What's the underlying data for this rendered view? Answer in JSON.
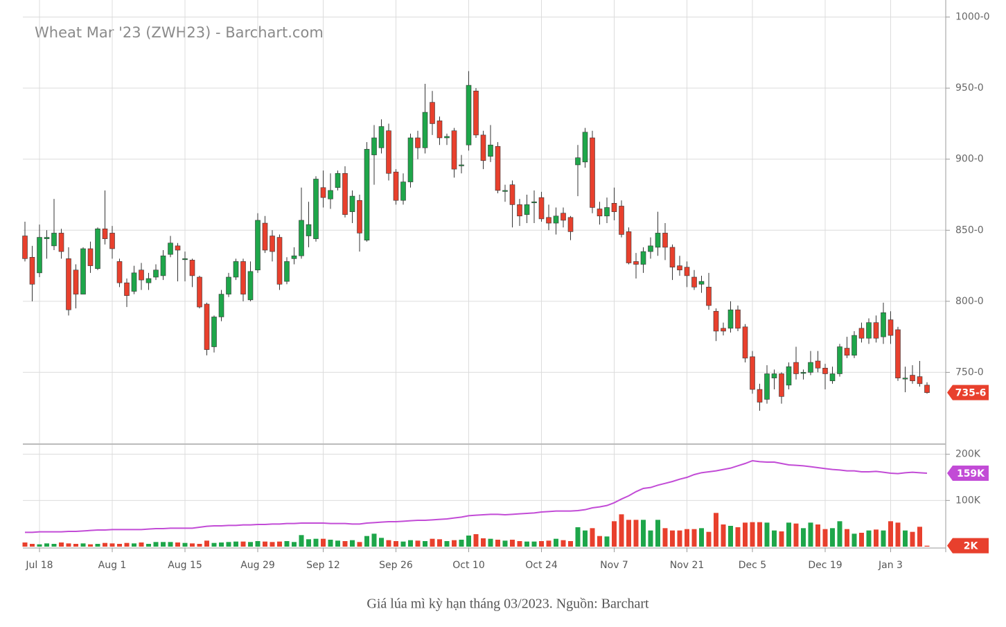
{
  "caption": "Giá lúa mì kỳ hạn tháng 03/2023. Nguồn: Barchart",
  "chart_data": [
    {
      "type": "candlestick",
      "title": "Wheat Mar '23 (ZWH23) - Barchart.com",
      "up_color": "#1ea64a",
      "down_color": "#e8402d",
      "grid": true,
      "ylim": [
        700,
        1012
      ],
      "yticks": [
        {
          "value": 750,
          "label": "750-0"
        },
        {
          "value": 800,
          "label": "800-0"
        },
        {
          "value": 850,
          "label": "850-0"
        },
        {
          "value": 900,
          "label": "900-0"
        },
        {
          "value": 950,
          "label": "950-0"
        },
        {
          "value": 1000,
          "label": "1000-0"
        }
      ],
      "last_label": {
        "value": 735.75,
        "label": "735-6"
      },
      "open": [
        846,
        831,
        820,
        844,
        839,
        848,
        830,
        822,
        805,
        837,
        823,
        851,
        848,
        828,
        813,
        807,
        822,
        813,
        817,
        818,
        833,
        839,
        830,
        829,
        817,
        798,
        768,
        789,
        805,
        817,
        828,
        801,
        822,
        855,
        846,
        845,
        814,
        830,
        832,
        846,
        844,
        880,
        872,
        880,
        890,
        863,
        871,
        843,
        903,
        908,
        920,
        891,
        871,
        884,
        915,
        908,
        940,
        927,
        915,
        920,
        896,
        910,
        948,
        917,
        902,
        909,
        878,
        882,
        868,
        861,
        870,
        873,
        859,
        855,
        862,
        859,
        896,
        898,
        915,
        865,
        860,
        869,
        867,
        849,
        828,
        826,
        835,
        838,
        848,
        838,
        825,
        824,
        817,
        812,
        810,
        793,
        781,
        781,
        794,
        782,
        761,
        738,
        731,
        746,
        749,
        741,
        757,
        750,
        750,
        758,
        753,
        744,
        749,
        767,
        762,
        781,
        774,
        785,
        775,
        787,
        780,
        746,
        748,
        747,
        741
      ],
      "high": [
        856,
        839,
        854,
        850,
        872,
        851,
        838,
        826,
        838,
        842,
        852,
        878,
        853,
        830,
        816,
        825,
        827,
        820,
        826,
        836,
        846,
        841,
        835,
        830,
        818,
        799,
        790,
        808,
        820,
        830,
        830,
        828,
        862,
        860,
        850,
        847,
        831,
        838,
        880,
        870,
        888,
        892,
        890,
        892,
        895,
        878,
        875,
        912,
        924,
        928,
        925,
        893,
        890,
        918,
        920,
        953,
        948,
        930,
        918,
        922,
        903,
        962,
        950,
        920,
        924,
        912,
        882,
        885,
        872,
        875,
        878,
        877,
        868,
        866,
        866,
        860,
        910,
        922,
        920,
        870,
        873,
        880,
        871,
        852,
        834,
        838,
        845,
        863,
        855,
        840,
        832,
        828,
        822,
        818,
        820,
        795,
        785,
        800,
        797,
        784,
        765,
        742,
        755,
        752,
        750,
        757,
        768,
        752,
        765,
        765,
        756,
        754,
        770,
        775,
        779,
        785,
        788,
        790,
        799,
        793,
        782,
        754,
        755,
        758,
        743
      ],
      "low": [
        828,
        800,
        817,
        830,
        836,
        830,
        790,
        795,
        805,
        820,
        822,
        840,
        830,
        810,
        796,
        805,
        808,
        808,
        815,
        815,
        831,
        814,
        814,
        810,
        795,
        762,
        764,
        786,
        803,
        815,
        800,
        800,
        820,
        834,
        828,
        808,
        812,
        826,
        830,
        838,
        842,
        866,
        865,
        878,
        859,
        855,
        835,
        842,
        882,
        904,
        885,
        868,
        868,
        880,
        900,
        904,
        917,
        910,
        910,
        887,
        890,
        906,
        915,
        893,
        898,
        876,
        870,
        852,
        853,
        855,
        855,
        856,
        850,
        847,
        852,
        843,
        874,
        894,
        862,
        854,
        855,
        857,
        845,
        826,
        816,
        820,
        830,
        832,
        829,
        815,
        818,
        810,
        808,
        806,
        794,
        772,
        776,
        778,
        779,
        757,
        735,
        723,
        728,
        738,
        728,
        738,
        745,
        745,
        748,
        750,
        738,
        742,
        747,
        760,
        760,
        771,
        770,
        771,
        770,
        770,
        744,
        736,
        742,
        740,
        735
      ],
      "close": [
        830,
        812,
        845,
        845,
        848,
        835,
        794,
        805,
        837,
        825,
        851,
        844,
        837,
        813,
        804,
        820,
        815,
        816,
        822,
        832,
        841,
        836,
        830,
        818,
        796,
        766,
        789,
        805,
        817,
        828,
        805,
        821,
        857,
        836,
        835,
        812,
        828,
        832,
        857,
        854,
        886,
        873,
        878,
        890,
        861,
        874,
        848,
        907,
        915,
        923,
        890,
        871,
        884,
        915,
        908,
        933,
        925,
        915,
        916,
        893,
        896,
        952,
        917,
        899,
        910,
        878,
        878,
        868,
        860,
        868,
        870,
        858,
        855,
        860,
        857,
        849,
        901,
        919,
        866,
        860,
        866,
        863,
        847,
        827,
        826,
        835,
        839,
        848,
        838,
        824,
        822,
        818,
        810,
        814,
        797,
        779,
        779,
        794,
        781,
        760,
        738,
        729,
        749,
        749,
        733,
        754,
        749,
        750,
        757,
        753,
        749,
        749,
        768,
        762,
        776,
        774,
        785,
        774,
        792,
        776,
        746,
        746,
        744,
        742,
        735.75
      ]
    },
    {
      "type": "bar",
      "categories": [
        null,
        null,
        "Jul 18",
        null,
        null,
        null,
        null,
        null,
        null,
        null,
        null,
        null,
        "Aug 1",
        null,
        null,
        null,
        null,
        null,
        null,
        null,
        null,
        null,
        "Aug 15",
        null,
        null,
        null,
        null,
        null,
        null,
        null,
        null,
        null,
        "Aug 29",
        null,
        null,
        null,
        null,
        null,
        null,
        null,
        null,
        "Sep 12",
        null,
        null,
        null,
        null,
        null,
        null,
        null,
        null,
        null,
        "Sep 26",
        null,
        null,
        null,
        null,
        null,
        null,
        null,
        null,
        null,
        "Oct 10",
        null,
        null,
        null,
        null,
        null,
        null,
        null,
        null,
        null,
        "Oct 24",
        null,
        null,
        null,
        null,
        null,
        null,
        null,
        null,
        null,
        "Nov 7",
        null,
        null,
        null,
        null,
        null,
        null,
        null,
        null,
        null,
        "Nov 21",
        null,
        null,
        null,
        null,
        null,
        null,
        null,
        null,
        "Dec 5",
        null,
        null,
        null,
        null,
        null,
        null,
        null,
        null,
        null,
        "Dec 19",
        null,
        null,
        null,
        null,
        null,
        null,
        null,
        null,
        "Jan 3",
        null,
        null,
        null,
        null,
        null
      ],
      "ylim": [
        0,
        216000
      ],
      "yticks": [
        {
          "value": 100000,
          "label": "100K"
        },
        {
          "value": 200000,
          "label": "200K"
        }
      ],
      "series": [
        {
          "type": "bar",
          "up_color": "#1ea64a",
          "down_color": "#e8402d",
          "last_label": {
            "value": 2000,
            "label": "2K"
          },
          "values": [
            9000,
            6000,
            5000,
            7000,
            6000,
            9000,
            7000,
            6000,
            7000,
            5000,
            6000,
            8000,
            7000,
            6000,
            8000,
            7000,
            9000,
            6000,
            10000,
            10000,
            10000,
            9000,
            8000,
            7000,
            6000,
            13000,
            8000,
            9000,
            10000,
            11000,
            11000,
            10000,
            12000,
            11000,
            10000,
            11000,
            12000,
            10000,
            25000,
            16000,
            17000,
            17000,
            15000,
            13000,
            12000,
            14000,
            10000,
            23000,
            28000,
            19000,
            14000,
            12000,
            11000,
            14000,
            13000,
            12000,
            17000,
            16000,
            12000,
            14000,
            15000,
            24000,
            27000,
            18000,
            17000,
            15000,
            13000,
            15000,
            12000,
            11000,
            11000,
            12000,
            13000,
            17000,
            14000,
            12000,
            42000,
            35000,
            40000,
            23000,
            22000,
            55000,
            70000,
            58000,
            58000,
            58000,
            35000,
            58000,
            40000,
            35000,
            35000,
            38000,
            38000,
            40000,
            32000,
            73000,
            48000,
            45000,
            42000,
            52000,
            53000,
            53000,
            52000,
            35000,
            33000,
            52000,
            50000,
            40000,
            52000,
            48000,
            38000,
            40000,
            55000,
            38000,
            28000,
            30000,
            35000,
            37000,
            35000,
            55000,
            52000,
            35000,
            32000,
            43000,
            2000
          ]
        },
        {
          "type": "line",
          "color": "#c24bd6",
          "last_label": {
            "value": 159000,
            "label": "159K"
          },
          "values": [
            31000,
            31000,
            32000,
            32000,
            32000,
            32000,
            33000,
            33000,
            34000,
            35000,
            36000,
            36000,
            37000,
            37000,
            37000,
            37000,
            37000,
            38000,
            39000,
            39000,
            40000,
            40000,
            40000,
            40000,
            42000,
            44000,
            45000,
            45000,
            46000,
            46000,
            47000,
            47000,
            48000,
            48000,
            49000,
            49000,
            50000,
            50000,
            51000,
            51000,
            51000,
            51000,
            50000,
            50000,
            50000,
            49000,
            49000,
            51000,
            52000,
            53000,
            54000,
            54000,
            55000,
            56000,
            57000,
            57000,
            58000,
            59000,
            60000,
            62000,
            64000,
            67000,
            68000,
            69000,
            70000,
            70000,
            69000,
            70000,
            71000,
            72000,
            73000,
            75000,
            76000,
            77000,
            77000,
            77000,
            78000,
            80000,
            84000,
            86000,
            89000,
            95000,
            103000,
            110000,
            119000,
            126000,
            128000,
            133000,
            137000,
            141000,
            146000,
            150000,
            156000,
            160000,
            162000,
            164000,
            167000,
            170000,
            175000,
            180000,
            186000,
            184000,
            183000,
            183000,
            180000,
            177000,
            176000,
            175000,
            173000,
            171000,
            169000,
            167000,
            166000,
            164000,
            164000,
            162000,
            162000,
            163000,
            161000,
            159000,
            158000,
            160000,
            161000,
            160000,
            159000
          ]
        }
      ]
    }
  ]
}
